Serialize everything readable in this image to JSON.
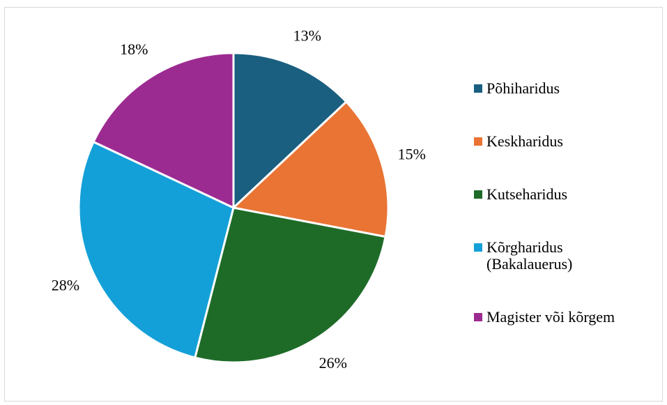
{
  "chart_data": {
    "type": "pie",
    "categories": [
      "Põhiharidus",
      "Keskharidus",
      "Kutseharidus",
      "Kõrgharidus (Bakalauerus)",
      "Magister või kõrgem"
    ],
    "values": [
      13,
      15,
      26,
      28,
      18
    ],
    "value_labels": [
      "13%",
      "15%",
      "26%",
      "28%",
      "18%"
    ],
    "colors": [
      "#1a5f80",
      "#e97434",
      "#1e6b28",
      "#13a0d8",
      "#9c2b91"
    ],
    "legend": "right"
  }
}
